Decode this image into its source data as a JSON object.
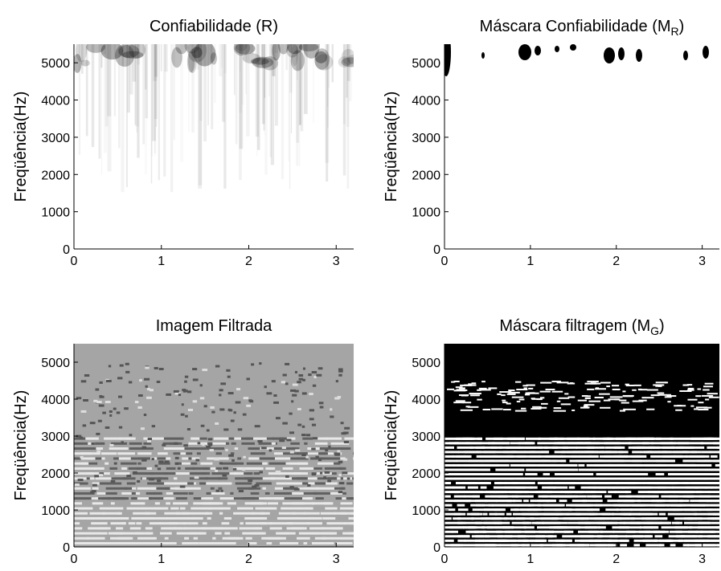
{
  "chart_data": [
    {
      "type": "heatmap",
      "title": [
        "Confiabilidade (R)"
      ],
      "ylabel": "Freqüência(Hz)",
      "xlim": [
        0,
        3.2
      ],
      "ylim": [
        0,
        5500
      ],
      "xticks": [
        0,
        1,
        2,
        3
      ],
      "yticks": [
        0,
        1000,
        2000,
        3000,
        4000,
        5000
      ]
    },
    {
      "type": "heatmap",
      "title": [
        "Máscara Confiabilidade (M",
        "R",
        ")"
      ],
      "ylabel": "Freqüência(Hz)",
      "xlim": [
        0,
        3.2
      ],
      "ylim": [
        0,
        5500
      ],
      "xticks": [
        0,
        1,
        2,
        3
      ],
      "yticks": [
        0,
        1000,
        2000,
        3000,
        4000,
        5000
      ]
    },
    {
      "type": "heatmap",
      "title": [
        "Imagem Filtrada"
      ],
      "ylabel": "Freqüência(Hz)",
      "xlim": [
        0,
        3.2
      ],
      "ylim": [
        0,
        5500
      ],
      "xticks": [
        0,
        1,
        2,
        3
      ],
      "yticks": [
        0,
        1000,
        2000,
        3000,
        4000,
        5000
      ]
    },
    {
      "type": "heatmap",
      "title": [
        "Máscara filtragem (M",
        "G",
        ")"
      ],
      "ylabel": "Freqüência(Hz)",
      "xlim": [
        0,
        3.2
      ],
      "ylim": [
        0,
        5500
      ],
      "xticks": [
        0,
        1,
        2,
        3
      ],
      "yticks": [
        0,
        1000,
        2000,
        3000,
        4000,
        5000
      ]
    }
  ]
}
